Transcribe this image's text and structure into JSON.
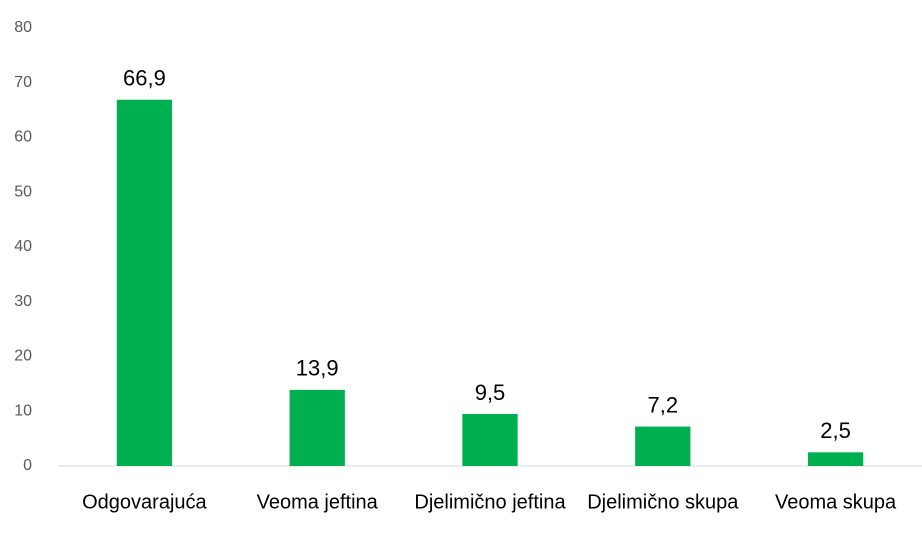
{
  "chart_data": {
    "type": "bar",
    "categories": [
      "Odgovarajuća",
      "Veoma jeftina",
      "Djelimično jeftina",
      "Djelimično skupa",
      "Veoma skupa"
    ],
    "values": [
      66.9,
      13.9,
      9.5,
      7.2,
      2.5
    ],
    "value_labels": [
      "66,9",
      "13,9",
      "9,5",
      "7,2",
      "2,5"
    ],
    "color": "#00b050",
    "ylim": [
      0,
      80
    ],
    "yticks": [
      0,
      10,
      20,
      30,
      40,
      50,
      60,
      70,
      80
    ],
    "grid": false
  }
}
